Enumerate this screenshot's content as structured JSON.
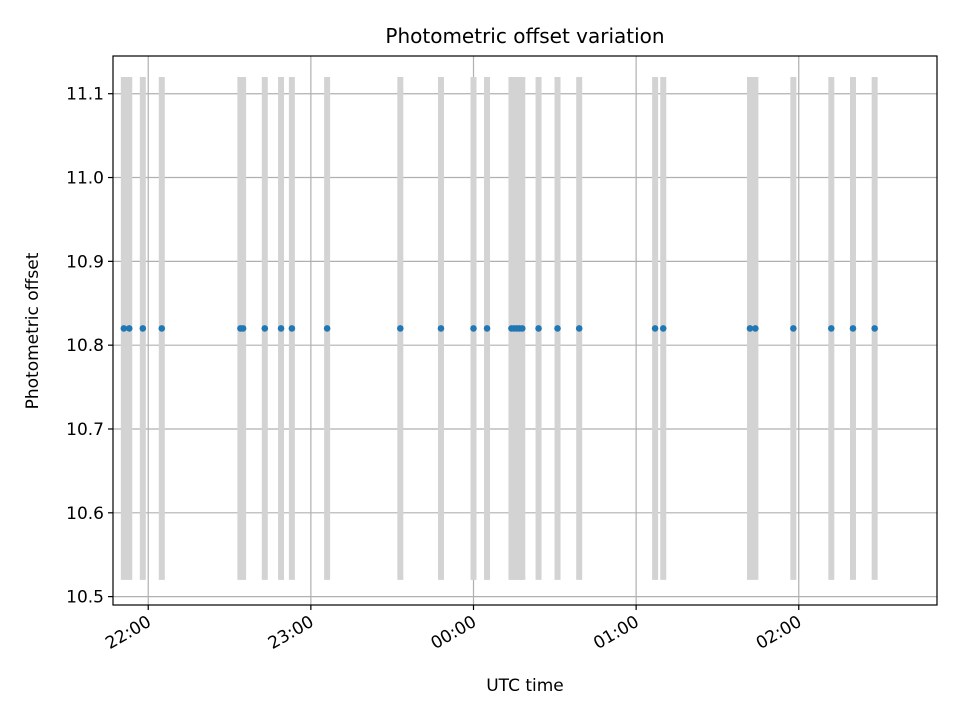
{
  "chart_data": {
    "type": "scatter",
    "title": "Photometric offset variation",
    "xlabel": "UTC time",
    "ylabel": "Photometric offset",
    "x_unit": "UTC time (HH:MM)",
    "xlim": [
      "21:47",
      "02:51"
    ],
    "ylim": [
      10.49,
      11.145
    ],
    "x_ticks": [
      "22:00",
      "23:00",
      "00:00",
      "01:00",
      "02:00"
    ],
    "y_ticks": [
      "10.5",
      "10.6",
      "10.7",
      "10.8",
      "10.9",
      "11.0",
      "11.1"
    ],
    "grid": true,
    "vertical_bands": {
      "y_range": [
        10.52,
        11.12
      ],
      "color": "#d3d3d3"
    },
    "point_color": "#1f77b4",
    "series": [
      {
        "x": [
          "21:51",
          "21:53",
          "21:58",
          "22:05",
          "22:34",
          "22:35",
          "22:43",
          "22:49",
          "22:53",
          "23:06",
          "23:33",
          "23:48",
          "00:00",
          "00:05",
          "00:14",
          "00:15",
          "00:16",
          "00:17",
          "00:18",
          "00:24",
          "00:31",
          "00:39",
          "01:07",
          "01:10",
          "01:42",
          "01:44",
          "01:58",
          "02:12",
          "02:20",
          "02:28"
        ],
        "y": [
          10.82,
          10.82,
          10.82,
          10.82,
          10.82,
          10.82,
          10.82,
          10.82,
          10.82,
          10.82,
          10.82,
          10.82,
          10.82,
          10.82,
          10.82,
          10.82,
          10.82,
          10.82,
          10.82,
          10.82,
          10.82,
          10.82,
          10.82,
          10.82,
          10.82,
          10.82,
          10.82,
          10.82,
          10.82,
          10.82
        ]
      }
    ]
  }
}
